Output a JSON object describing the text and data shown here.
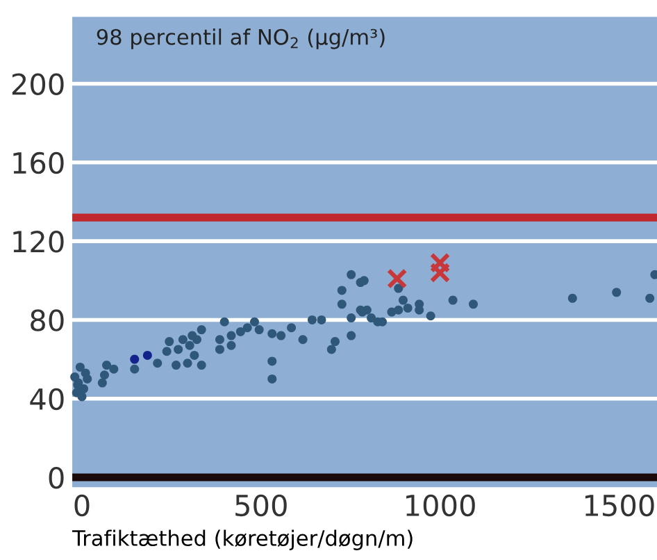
{
  "chart_data": {
    "type": "scatter",
    "title": "98 percentil af NO$_{2}$ (µg/m³)",
    "xlabel": "Trafiktæthed (køretøjer/døgn/m)",
    "xlim": [
      -27,
      1606
    ],
    "ylim": [
      -5,
      234
    ],
    "xticks": [
      0,
      500,
      1000,
      1500
    ],
    "yticks": [
      0,
      40,
      80,
      120,
      160,
      200
    ],
    "grid": "y",
    "ref_lines": [
      {
        "axis": "y",
        "value": 132,
        "color": "#c0282d"
      },
      {
        "axis": "y",
        "value": 0,
        "color": "#1a0a0a"
      }
    ],
    "series": [
      {
        "color": "#2f5878",
        "marker": "circle",
        "x": [
          -20,
          -15,
          -10,
          -5,
          0,
          5,
          10,
          15,
          -12,
          57,
          63,
          69,
          89,
          147,
          211,
          237,
          244,
          263,
          269,
          282,
          295,
          301,
          308,
          314,
          321,
          334,
          334,
          385,
          385,
          398,
          417,
          417,
          443,
          462,
          482,
          495,
          531,
          531,
          531,
          556,
          585,
          617,
          643,
          669,
          697,
          707,
          726,
          726,
          752,
          752,
          752,
          778,
          778,
          788,
          783,
          796,
          808,
          826,
          839,
          865,
          884,
          884,
          897,
          910,
          942,
          942,
          974,
          1036,
          1093,
          1370,
          1493,
          1586,
          1600
        ],
        "values": [
          51,
          43,
          48,
          56,
          41,
          45,
          53,
          50,
          47,
          48,
          52,
          57,
          55,
          55,
          58,
          64,
          69,
          57,
          65,
          70,
          58,
          67,
          72,
          62,
          70,
          75,
          57,
          65,
          70,
          79,
          72,
          67,
          74,
          76,
          79,
          75,
          73,
          59,
          50,
          72,
          76,
          70,
          80,
          80,
          65,
          69,
          95,
          88,
          103,
          81,
          72,
          99,
          85,
          100,
          84,
          85,
          81,
          79,
          79,
          84,
          85,
          96,
          90,
          86,
          88,
          85,
          82,
          90,
          88,
          91,
          94,
          91,
          103
        ]
      },
      {
        "color": "#14238c",
        "marker": "circle",
        "x": [
          147,
          183
        ],
        "values": [
          60,
          62
        ]
      },
      {
        "color": "#c8383a",
        "marker": "cross",
        "x": [
          880,
          1000,
          1000
        ],
        "values": [
          101,
          109,
          104
        ]
      }
    ]
  }
}
